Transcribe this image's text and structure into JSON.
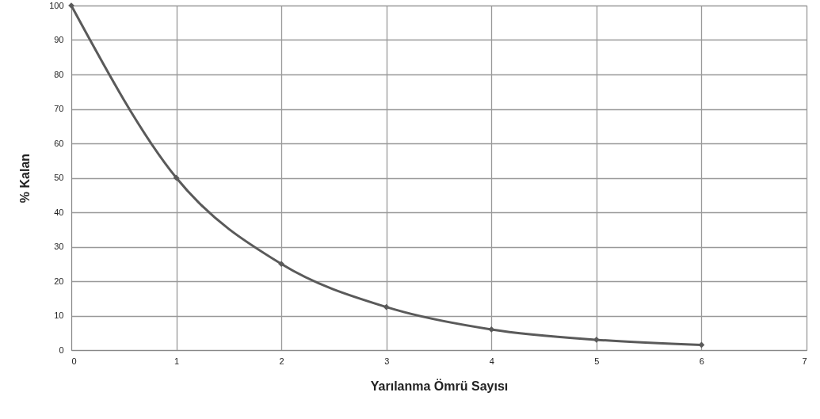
{
  "chart_data": {
    "type": "line",
    "xlabel": "Yarılanma Ömrü Sayısı",
    "ylabel": "% Kalan",
    "x": [
      0,
      1,
      2,
      3,
      4,
      5,
      6
    ],
    "series": [
      {
        "color": "#5a5a5a",
        "values": [
          100,
          50,
          25,
          12.5,
          6,
          3,
          1.5
        ]
      }
    ],
    "xlim": [
      0,
      7
    ],
    "xticks": [
      0,
      1,
      2,
      3,
      4,
      5,
      6,
      7
    ],
    "ylim": [
      0,
      100
    ],
    "yticks": [
      0,
      10,
      20,
      30,
      40,
      50,
      60,
      70,
      80,
      90,
      100
    ],
    "grid": true,
    "marker": "diamond"
  }
}
